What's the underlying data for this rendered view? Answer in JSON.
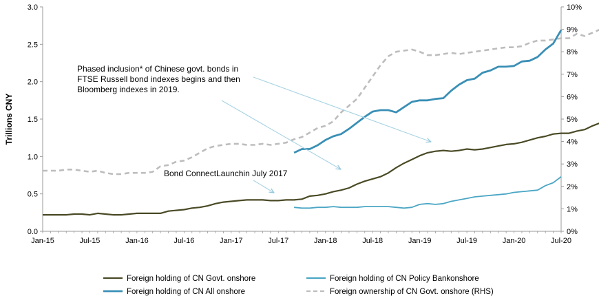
{
  "chart_data": {
    "type": "line",
    "ylabel": "Trillions CNY",
    "ylim": [
      0,
      3.0
    ],
    "y_ticks": [
      "0.0",
      "0.5",
      "1.0",
      "1.5",
      "2.0",
      "2.5",
      "3.0"
    ],
    "y2lim": [
      0,
      10
    ],
    "y2_ticks": [
      "0%",
      "1%",
      "2%",
      "3%",
      "4%",
      "5%",
      "6%",
      "7%",
      "8%",
      "9%",
      "10%"
    ],
    "x_tick_labels": [
      "Jan-15",
      "Jul-15",
      "Jan-16",
      "Jul-16",
      "Jan-17",
      "Jul-17",
      "Jan-18",
      "Jul-18",
      "Jan-19",
      "Jul-19",
      "Jan-20",
      "Jul-20"
    ],
    "x_start": "2015-01",
    "x_end": "2020-07",
    "legend_position": "bottom",
    "grid": false,
    "series": [
      {
        "name": "Foreign holding of CN Govt. onshore",
        "axis": "left",
        "color": "#4a4a26",
        "style": "solid",
        "start": "2015-01",
        "values": [
          0.22,
          0.22,
          0.22,
          0.22,
          0.23,
          0.23,
          0.22,
          0.24,
          0.23,
          0.22,
          0.22,
          0.23,
          0.24,
          0.24,
          0.24,
          0.24,
          0.27,
          0.28,
          0.29,
          0.31,
          0.32,
          0.34,
          0.37,
          0.39,
          0.4,
          0.41,
          0.42,
          0.42,
          0.42,
          0.41,
          0.41,
          0.42,
          0.42,
          0.43,
          0.47,
          0.48,
          0.5,
          0.53,
          0.55,
          0.58,
          0.63,
          0.67,
          0.7,
          0.73,
          0.78,
          0.85,
          0.91,
          0.96,
          1.01,
          1.05,
          1.07,
          1.08,
          1.07,
          1.08,
          1.1,
          1.09,
          1.1,
          1.12,
          1.14,
          1.16,
          1.17,
          1.19,
          1.22,
          1.25,
          1.27,
          1.3,
          1.31,
          1.31,
          1.34,
          1.36,
          1.41,
          1.45,
          1.49,
          1.54
        ]
      },
      {
        "name": "Foreign holding of CN Policy Bankonshore",
        "axis": "left",
        "color": "#4aa6c4",
        "style": "solid",
        "start": "2017-09",
        "values": [
          0.32,
          0.31,
          0.31,
          0.32,
          0.32,
          0.33,
          0.32,
          0.32,
          0.32,
          0.33,
          0.33,
          0.33,
          0.33,
          0.32,
          0.31,
          0.32,
          0.36,
          0.37,
          0.36,
          0.37,
          0.4,
          0.42,
          0.44,
          0.46,
          0.47,
          0.48,
          0.49,
          0.5,
          0.52,
          0.53,
          0.54,
          0.55,
          0.61,
          0.65,
          0.73
        ]
      },
      {
        "name": "Foreign holding of CN All onshore",
        "axis": "left",
        "color": "#3a8fb5",
        "style": "solid",
        "start": "2017-09",
        "values": [
          1.05,
          1.1,
          1.1,
          1.15,
          1.22,
          1.27,
          1.3,
          1.37,
          1.45,
          1.53,
          1.6,
          1.62,
          1.62,
          1.59,
          1.66,
          1.73,
          1.75,
          1.75,
          1.77,
          1.78,
          1.88,
          1.96,
          2.02,
          2.04,
          2.12,
          2.15,
          2.2,
          2.2,
          2.21,
          2.27,
          2.28,
          2.33,
          2.43,
          2.51,
          2.69
        ]
      },
      {
        "name": "Foreign ownership of CN Govt. onshore (RHS)",
        "axis": "right",
        "color": "#bdbdbd",
        "style": "dashed",
        "start": "2015-01",
        "values": [
          2.7,
          2.7,
          2.7,
          2.75,
          2.75,
          2.7,
          2.65,
          2.7,
          2.6,
          2.55,
          2.55,
          2.6,
          2.6,
          2.6,
          2.65,
          2.9,
          2.95,
          3.1,
          3.15,
          3.3,
          3.5,
          3.7,
          3.8,
          3.85,
          3.9,
          3.9,
          3.85,
          3.85,
          3.9,
          3.85,
          3.9,
          3.95,
          4.1,
          4.2,
          4.4,
          4.6,
          4.7,
          4.9,
          5.3,
          5.6,
          5.9,
          6.4,
          6.9,
          7.4,
          7.8,
          8.0,
          8.05,
          8.1,
          8.0,
          7.85,
          7.85,
          7.9,
          7.95,
          7.9,
          7.95,
          8.0,
          8.05,
          8.1,
          8.15,
          8.2,
          8.2,
          8.25,
          8.4,
          8.5,
          8.5,
          8.55,
          8.6,
          8.6,
          8.8,
          8.7,
          8.85,
          9.0,
          9.05,
          9.0
        ]
      }
    ],
    "annotations": [
      {
        "lines": [
          "Phased inclusion* of Chinese govt. bonds in",
          "FTSE Russell bond indexes begins and then",
          "Bloomberg indexes in 2019."
        ]
      },
      {
        "lines": [
          "Bond ConnectLaunchin July 2017"
        ]
      }
    ]
  }
}
